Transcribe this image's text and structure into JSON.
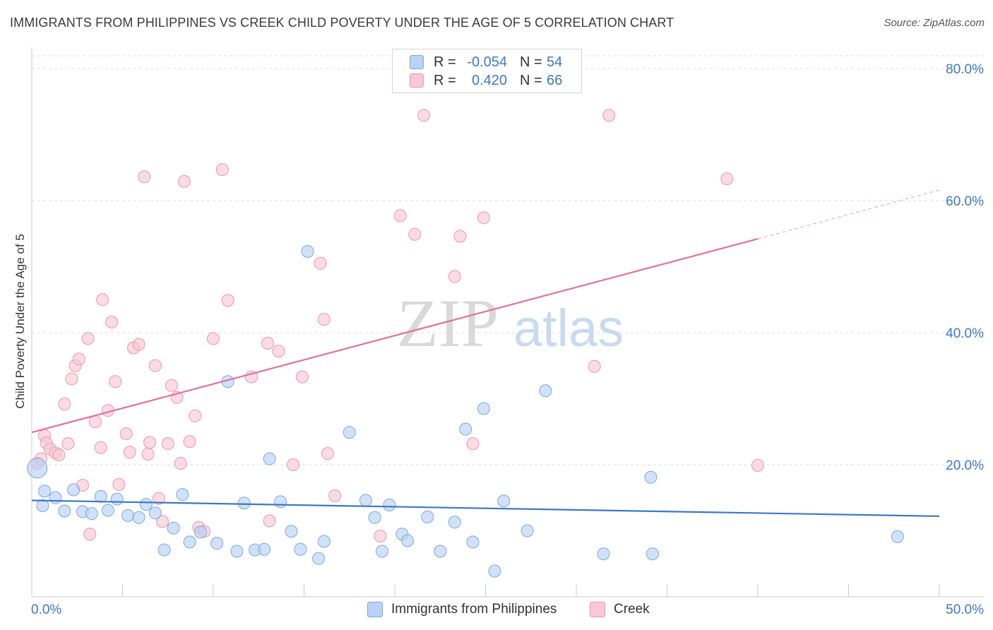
{
  "title": "IMMIGRANTS FROM PHILIPPINES VS CREEK CHILD POVERTY UNDER THE AGE OF 5 CORRELATION CHART",
  "source": "Source: ZipAtlas.com",
  "watermark": {
    "zip": "ZIP",
    "atlas": "atlas"
  },
  "legend": {
    "r_label": "R =",
    "n_label": "N =",
    "rows": [
      {
        "r": "-0.054",
        "n": "54",
        "fill": "#b9d3f5",
        "stroke": "#7aa8e0"
      },
      {
        "r": "0.420",
        "n": "66",
        "fill": "#f9c7d6",
        "stroke": "#ec94b2"
      }
    ]
  },
  "chart_data": {
    "type": "scatter",
    "title": "IMMIGRANTS FROM PHILIPPINES VS CREEK CHILD POVERTY UNDER THE AGE OF 5 CORRELATION CHART",
    "xlabel": "",
    "ylabel": "Child Poverty Under the Age of 5",
    "xlim": [
      0,
      50
    ],
    "ylim": [
      0,
      80
    ],
    "x_tick_labels": [
      {
        "value": 0,
        "label": "0.0%"
      },
      {
        "value": 50,
        "label": "50.0%"
      }
    ],
    "y_tick_labels": [
      {
        "value": 20,
        "label": "20.0%"
      },
      {
        "value": 40,
        "label": "40.0%"
      },
      {
        "value": 60,
        "label": "60.0%"
      },
      {
        "value": 80,
        "label": "80.0%"
      }
    ],
    "grid": true,
    "legend_position": "top-center",
    "series": [
      {
        "name": "Immigrants from Philippines",
        "color": "#3c78c8",
        "fill": "#b9d3f5",
        "stroke": "#7aa8e0",
        "r": -0.054,
        "n": 54,
        "trend": {
          "x0": 0,
          "y0": 14.6,
          "x1": 50,
          "y1": 12.2
        },
        "points": [
          [
            0.3,
            19.5
          ],
          [
            0.7,
            16.0
          ],
          [
            1.3,
            15.0
          ],
          [
            1.8,
            13.0
          ],
          [
            2.3,
            16.2
          ],
          [
            2.8,
            12.9
          ],
          [
            3.3,
            12.6
          ],
          [
            3.8,
            15.2
          ],
          [
            4.2,
            13.1
          ],
          [
            4.7,
            14.8
          ],
          [
            5.3,
            12.3
          ],
          [
            5.9,
            12.0
          ],
          [
            6.3,
            14.0
          ],
          [
            6.8,
            12.7
          ],
          [
            7.3,
            7.1
          ],
          [
            7.8,
            10.4
          ],
          [
            8.3,
            15.5
          ],
          [
            8.7,
            8.3
          ],
          [
            9.3,
            9.8
          ],
          [
            10.2,
            8.1
          ],
          [
            10.8,
            32.6
          ],
          [
            11.3,
            6.9
          ],
          [
            11.7,
            14.2
          ],
          [
            12.3,
            7.1
          ],
          [
            12.8,
            7.2
          ],
          [
            13.1,
            20.9
          ],
          [
            13.7,
            14.4
          ],
          [
            14.3,
            9.9
          ],
          [
            14.8,
            7.2
          ],
          [
            15.2,
            52.3
          ],
          [
            15.8,
            5.8
          ],
          [
            16.1,
            8.4
          ],
          [
            17.5,
            24.9
          ],
          [
            18.4,
            14.6
          ],
          [
            18.9,
            12.0
          ],
          [
            19.3,
            6.9
          ],
          [
            19.7,
            13.9
          ],
          [
            20.4,
            9.5
          ],
          [
            20.7,
            8.5
          ],
          [
            21.8,
            12.1
          ],
          [
            22.5,
            6.9
          ],
          [
            23.3,
            11.3
          ],
          [
            23.9,
            25.4
          ],
          [
            24.3,
            8.3
          ],
          [
            24.9,
            28.5
          ],
          [
            25.5,
            3.9
          ],
          [
            26.0,
            14.5
          ],
          [
            27.3,
            10.0
          ],
          [
            28.3,
            31.2
          ],
          [
            31.5,
            6.5
          ],
          [
            34.1,
            18.1
          ],
          [
            34.2,
            6.5
          ],
          [
            47.7,
            9.1
          ],
          [
            0.6,
            13.8
          ]
        ]
      },
      {
        "name": "Creek",
        "color": "#e57096",
        "fill": "#f9c7d6",
        "stroke": "#ec94b2",
        "r": 0.42,
        "n": 66,
        "trend": {
          "x0": 0,
          "y0": 24.9,
          "x1": 40,
          "y1": 54.2,
          "dash_x1": 50,
          "dash_y1": 61.6
        },
        "points": [
          [
            0.3,
            20.2
          ],
          [
            0.7,
            24.4
          ],
          [
            0.8,
            23.3
          ],
          [
            1.0,
            22.4
          ],
          [
            1.3,
            21.8
          ],
          [
            1.5,
            21.5
          ],
          [
            1.8,
            29.2
          ],
          [
            2.0,
            23.2
          ],
          [
            2.2,
            33.0
          ],
          [
            2.4,
            35.0
          ],
          [
            2.6,
            36.0
          ],
          [
            2.8,
            16.9
          ],
          [
            3.1,
            39.1
          ],
          [
            3.2,
            9.5
          ],
          [
            3.5,
            26.5
          ],
          [
            3.8,
            22.6
          ],
          [
            3.9,
            45.0
          ],
          [
            4.2,
            28.2
          ],
          [
            4.4,
            41.6
          ],
          [
            4.6,
            32.6
          ],
          [
            4.8,
            17.0
          ],
          [
            5.2,
            24.7
          ],
          [
            5.4,
            21.9
          ],
          [
            5.6,
            37.7
          ],
          [
            5.9,
            38.2
          ],
          [
            6.2,
            63.6
          ],
          [
            6.4,
            21.6
          ],
          [
            6.5,
            23.4
          ],
          [
            6.8,
            35.0
          ],
          [
            7.0,
            14.9
          ],
          [
            7.2,
            11.4
          ],
          [
            7.5,
            23.2
          ],
          [
            7.7,
            32.0
          ],
          [
            8.0,
            30.2
          ],
          [
            8.2,
            20.2
          ],
          [
            8.4,
            62.9
          ],
          [
            8.7,
            23.5
          ],
          [
            9.0,
            27.4
          ],
          [
            9.2,
            10.5
          ],
          [
            9.5,
            9.9
          ],
          [
            10.0,
            39.1
          ],
          [
            10.5,
            64.7
          ],
          [
            10.8,
            44.9
          ],
          [
            12.1,
            33.3
          ],
          [
            13.0,
            38.4
          ],
          [
            13.1,
            11.5
          ],
          [
            13.6,
            37.2
          ],
          [
            14.4,
            20.0
          ],
          [
            14.9,
            33.3
          ],
          [
            15.9,
            50.5
          ],
          [
            16.1,
            42.0
          ],
          [
            16.3,
            21.7
          ],
          [
            16.7,
            15.3
          ],
          [
            19.2,
            9.2
          ],
          [
            20.3,
            57.7
          ],
          [
            21.1,
            54.9
          ],
          [
            21.6,
            72.9
          ],
          [
            23.3,
            48.5
          ],
          [
            23.6,
            54.6
          ],
          [
            24.3,
            23.2
          ],
          [
            24.9,
            57.4
          ],
          [
            31.0,
            34.9
          ],
          [
            31.8,
            72.9
          ],
          [
            38.3,
            63.3
          ],
          [
            40.0,
            19.9
          ],
          [
            0.5,
            20.9
          ]
        ]
      }
    ]
  }
}
